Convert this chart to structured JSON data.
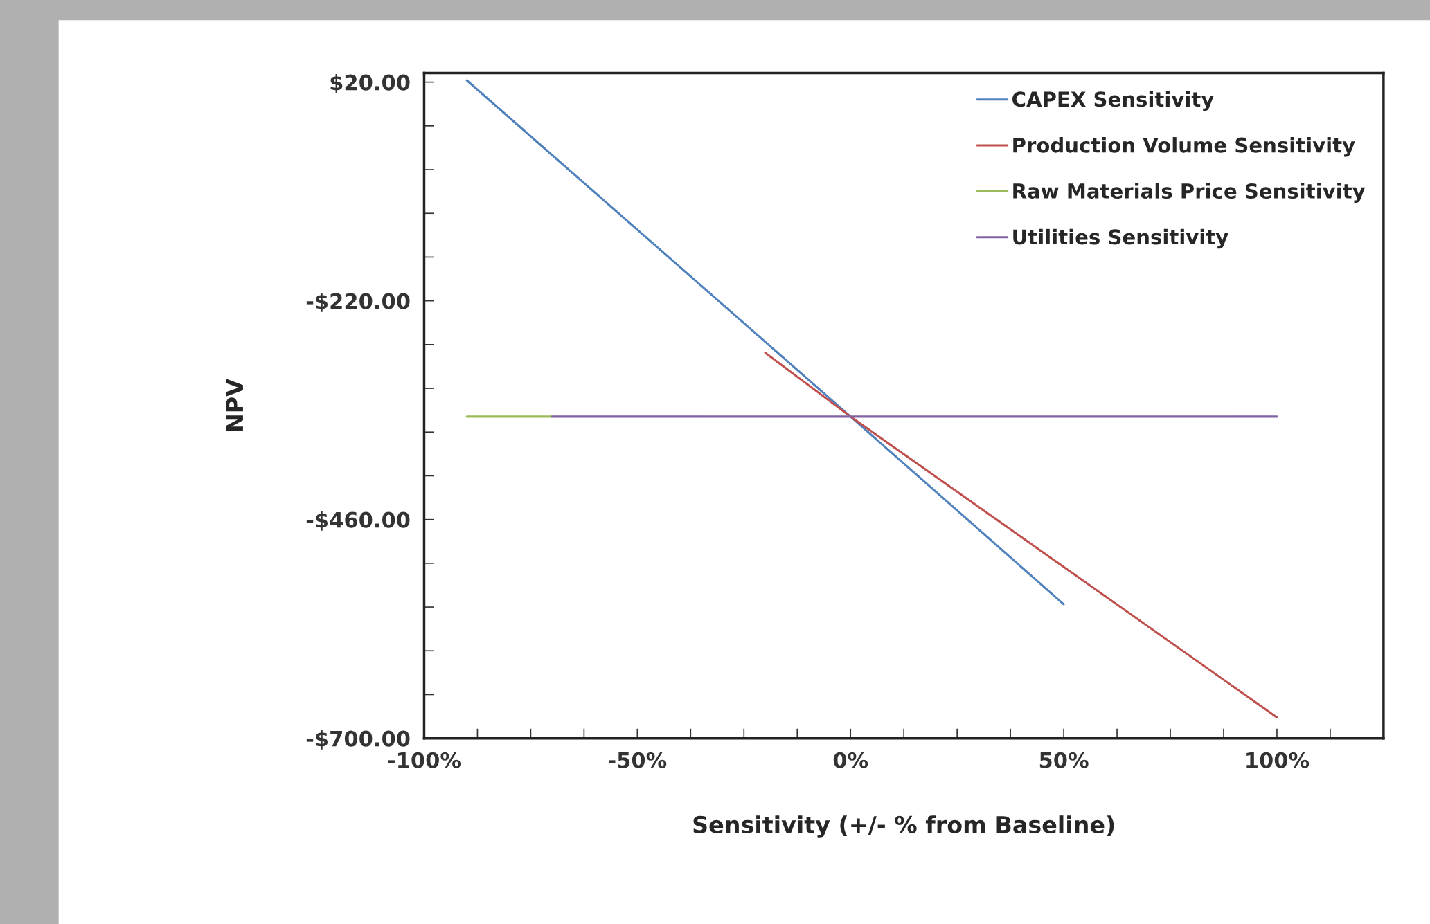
{
  "chart_data": {
    "type": "line",
    "xlabel": "Sensitivity (+/- % from Baseline)",
    "ylabel": "NPV",
    "xlim": [
      -100,
      125
    ],
    "ylim": [
      -700,
      30
    ],
    "xticks": [
      {
        "value": -100,
        "label": "-100%"
      },
      {
        "value": -87.5,
        "label": null
      },
      {
        "value": -75,
        "label": null
      },
      {
        "value": -62.5,
        "label": null
      },
      {
        "value": -50,
        "label": "-50%"
      },
      {
        "value": -37.5,
        "label": null
      },
      {
        "value": -25,
        "label": null
      },
      {
        "value": -12.5,
        "label": null
      },
      {
        "value": 0,
        "label": "0%"
      },
      {
        "value": 12.5,
        "label": null
      },
      {
        "value": 25,
        "label": null
      },
      {
        "value": 37.5,
        "label": null
      },
      {
        "value": 50,
        "label": "50%"
      },
      {
        "value": 62.5,
        "label": null
      },
      {
        "value": 75,
        "label": null
      },
      {
        "value": 87.5,
        "label": null
      },
      {
        "value": 100,
        "label": "100%"
      },
      {
        "value": 112.5,
        "label": null
      }
    ],
    "yticks": [
      {
        "value": 20,
        "label": "$20.00"
      },
      {
        "value": -28,
        "label": null
      },
      {
        "value": -76,
        "label": null
      },
      {
        "value": -124,
        "label": null
      },
      {
        "value": -172,
        "label": null
      },
      {
        "value": -220,
        "label": "-$220.00"
      },
      {
        "value": -268,
        "label": null
      },
      {
        "value": -316,
        "label": null
      },
      {
        "value": -364,
        "label": null
      },
      {
        "value": -412,
        "label": null
      },
      {
        "value": -460,
        "label": "-$460.00"
      },
      {
        "value": -508,
        "label": null
      },
      {
        "value": -556,
        "label": null
      },
      {
        "value": -604,
        "label": null
      },
      {
        "value": -652,
        "label": null
      },
      {
        "value": -700,
        "label": "-$700.00"
      }
    ],
    "grid": false,
    "legend": "top right",
    "marker": "none",
    "line_style": "solid",
    "series": [
      {
        "name": "CAPEX Sensitivity",
        "color": "#4f81bd",
        "x": [
          -90,
          0,
          50
        ],
        "values": [
          22,
          -347,
          -553
        ]
      },
      {
        "name": "Production Volume Sensitivity",
        "color": "#c0504d",
        "x": [
          -20,
          0,
          100
        ],
        "values": [
          -277,
          -347,
          -677
        ]
      },
      {
        "name": "Raw Materials Price Sensitivity",
        "color": "#9bbb59",
        "x": [
          -90,
          -70
        ],
        "values": [
          -347,
          -347
        ]
      },
      {
        "name": "Utilities Sensitivity",
        "color": "#8064a2",
        "x": [
          -70,
          100
        ],
        "values": [
          -347,
          -347
        ]
      }
    ]
  }
}
